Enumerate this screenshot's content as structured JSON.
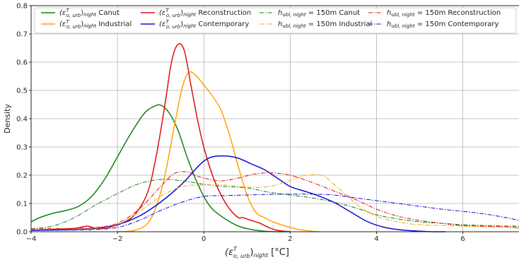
{
  "chart_data": {
    "type": "line",
    "xlabel": {
      "base": "(ε",
      "sup": "T",
      "sub1": "o, urb",
      "close": ")",
      "sub2": "night",
      "unit": " [°C]"
    },
    "ylabel": "Density",
    "xlim": [
      -4,
      7.3
    ],
    "ylim": [
      0,
      0.8
    ],
    "xticks": [
      -4,
      -2,
      0,
      2,
      4,
      6
    ],
    "yticks": [
      0.0,
      0.1,
      0.2,
      0.3,
      0.4,
      0.5,
      0.6,
      0.7,
      0.8
    ],
    "grid": true,
    "legend_position": "top",
    "series": [
      {
        "name": "Canut",
        "label_kind": "eps",
        "color": "#118011",
        "dash": "solid",
        "x": [
          -4.0,
          -3.8,
          -3.5,
          -3.2,
          -2.9,
          -2.6,
          -2.3,
          -2.0,
          -1.7,
          -1.4,
          -1.2,
          -1.0,
          -0.8,
          -0.6,
          -0.4,
          -0.2,
          0.0,
          0.2,
          0.5,
          0.8,
          1.1,
          1.4,
          1.7,
          2.0
        ],
        "y": [
          0.035,
          0.05,
          0.065,
          0.075,
          0.09,
          0.125,
          0.185,
          0.265,
          0.345,
          0.415,
          0.44,
          0.448,
          0.42,
          0.36,
          0.27,
          0.19,
          0.125,
          0.08,
          0.045,
          0.02,
          0.008,
          0.002,
          0.0,
          0.0
        ]
      },
      {
        "name": "Industrial",
        "label_kind": "eps",
        "color": "#FFA500",
        "dash": "solid",
        "x": [
          -2.0,
          -1.6,
          -1.3,
          -1.1,
          -0.9,
          -0.7,
          -0.5,
          -0.35,
          -0.2,
          0.0,
          0.2,
          0.4,
          0.6,
          0.8,
          1.0,
          1.2,
          1.4,
          1.6,
          1.9,
          2.2,
          2.5,
          2.7
        ],
        "y": [
          0.0,
          0.005,
          0.03,
          0.09,
          0.2,
          0.36,
          0.51,
          0.563,
          0.555,
          0.52,
          0.48,
          0.43,
          0.34,
          0.23,
          0.13,
          0.07,
          0.05,
          0.035,
          0.02,
          0.008,
          0.002,
          0.0
        ]
      },
      {
        "name": "Reconstruction",
        "label_kind": "eps",
        "color": "#E01010",
        "dash": "solid",
        "x": [
          -4.0,
          -3.5,
          -3.0,
          -2.7,
          -2.5,
          -2.2,
          -1.9,
          -1.6,
          -1.3,
          -1.1,
          -0.9,
          -0.75,
          -0.6,
          -0.45,
          -0.3,
          -0.15,
          0.0,
          0.2,
          0.4,
          0.6,
          0.8,
          0.9,
          1.1,
          1.3,
          1.5,
          1.7,
          2.0
        ],
        "y": [
          0.005,
          0.008,
          0.012,
          0.02,
          0.012,
          0.015,
          0.03,
          0.06,
          0.14,
          0.27,
          0.45,
          0.6,
          0.663,
          0.64,
          0.52,
          0.4,
          0.3,
          0.2,
          0.13,
          0.08,
          0.05,
          0.05,
          0.04,
          0.03,
          0.015,
          0.005,
          0.0
        ]
      },
      {
        "name": "Contemporary",
        "label_kind": "eps",
        "color": "#0B0BD6",
        "dash": "solid",
        "x": [
          -4.0,
          -3.5,
          -3.0,
          -2.5,
          -2.0,
          -1.5,
          -1.0,
          -0.5,
          -0.2,
          0.0,
          0.2,
          0.5,
          0.8,
          1.1,
          1.4,
          1.7,
          2.0,
          2.3,
          2.6,
          3.0,
          3.4,
          3.8,
          4.2,
          4.6,
          5.0,
          5.3,
          5.6
        ],
        "y": [
          0.005,
          0.006,
          0.008,
          0.012,
          0.025,
          0.055,
          0.105,
          0.17,
          0.22,
          0.25,
          0.265,
          0.268,
          0.26,
          0.24,
          0.22,
          0.19,
          0.16,
          0.145,
          0.13,
          0.105,
          0.07,
          0.035,
          0.015,
          0.006,
          0.002,
          0.0,
          0.0
        ]
      },
      {
        "name": "Canut",
        "label_kind": "h",
        "color": "#118011",
        "dash": "dashdot",
        "x": [
          -4.0,
          -3.5,
          -3.0,
          -2.5,
          -2.0,
          -1.5,
          -1.0,
          -0.5,
          0.0,
          0.5,
          1.0,
          1.5,
          2.0,
          2.5,
          3.0,
          3.5,
          4.0,
          4.5,
          5.0,
          5.5,
          6.0,
          6.5,
          7.0,
          7.3
        ],
        "y": [
          0.01,
          0.02,
          0.05,
          0.095,
          0.135,
          0.17,
          0.185,
          0.18,
          0.168,
          0.16,
          0.155,
          0.14,
          0.13,
          0.12,
          0.105,
          0.085,
          0.06,
          0.045,
          0.035,
          0.03,
          0.025,
          0.022,
          0.02,
          0.02
        ]
      },
      {
        "name": "Industrial",
        "label_kind": "h",
        "color": "#FFA500",
        "dash": "dashdot",
        "x": [
          -4.0,
          -3.0,
          -2.5,
          -2.0,
          -1.5,
          -1.0,
          -0.5,
          0.0,
          0.5,
          1.0,
          1.5,
          2.0,
          2.3,
          2.6,
          2.8,
          3.0,
          3.3,
          3.6,
          4.0,
          4.5,
          5.0,
          6.0,
          7.0,
          7.3
        ],
        "y": [
          0.005,
          0.008,
          0.012,
          0.025,
          0.07,
          0.125,
          0.16,
          0.165,
          0.165,
          0.158,
          0.16,
          0.182,
          0.198,
          0.202,
          0.195,
          0.17,
          0.13,
          0.09,
          0.055,
          0.035,
          0.025,
          0.02,
          0.015,
          0.012
        ]
      },
      {
        "name": "Reconstruction",
        "label_kind": "h",
        "color": "#E01010",
        "dash": "dashdot",
        "x": [
          -4.0,
          -3.0,
          -2.5,
          -2.0,
          -1.5,
          -1.0,
          -0.7,
          -0.4,
          -0.2,
          0.0,
          0.4,
          0.8,
          1.2,
          1.6,
          2.0,
          2.5,
          3.0,
          3.5,
          4.0,
          4.5,
          5.0,
          5.5,
          6.0,
          7.0,
          7.3
        ],
        "y": [
          0.01,
          0.012,
          0.015,
          0.03,
          0.08,
          0.16,
          0.205,
          0.212,
          0.2,
          0.19,
          0.18,
          0.19,
          0.205,
          0.208,
          0.2,
          0.175,
          0.145,
          0.115,
          0.08,
          0.055,
          0.04,
          0.03,
          0.022,
          0.018,
          0.015
        ]
      },
      {
        "name": "Contemporary",
        "label_kind": "h",
        "color": "#0B0BD6",
        "dash": "dashdot",
        "x": [
          -4.0,
          -3.0,
          -2.5,
          -2.0,
          -1.5,
          -1.0,
          -0.5,
          0.0,
          0.5,
          1.0,
          1.5,
          2.0,
          2.5,
          3.0,
          3.5,
          4.0,
          4.5,
          5.0,
          5.5,
          6.0,
          6.5,
          7.0,
          7.3
        ],
        "y": [
          0.005,
          0.006,
          0.008,
          0.015,
          0.04,
          0.075,
          0.105,
          0.125,
          0.128,
          0.13,
          0.132,
          0.133,
          0.133,
          0.13,
          0.12,
          0.11,
          0.1,
          0.09,
          0.08,
          0.072,
          0.063,
          0.05,
          0.04
        ]
      }
    ],
    "legend_text": {
      "eps_base": "(ε",
      "eps_sup": "T",
      "eps_sub": "o, urb",
      "eps_close": ")",
      "eps_sub2": "night",
      "h_base": "h",
      "h_sub": "ubl, night",
      "h_eq": " = 150m "
    }
  }
}
